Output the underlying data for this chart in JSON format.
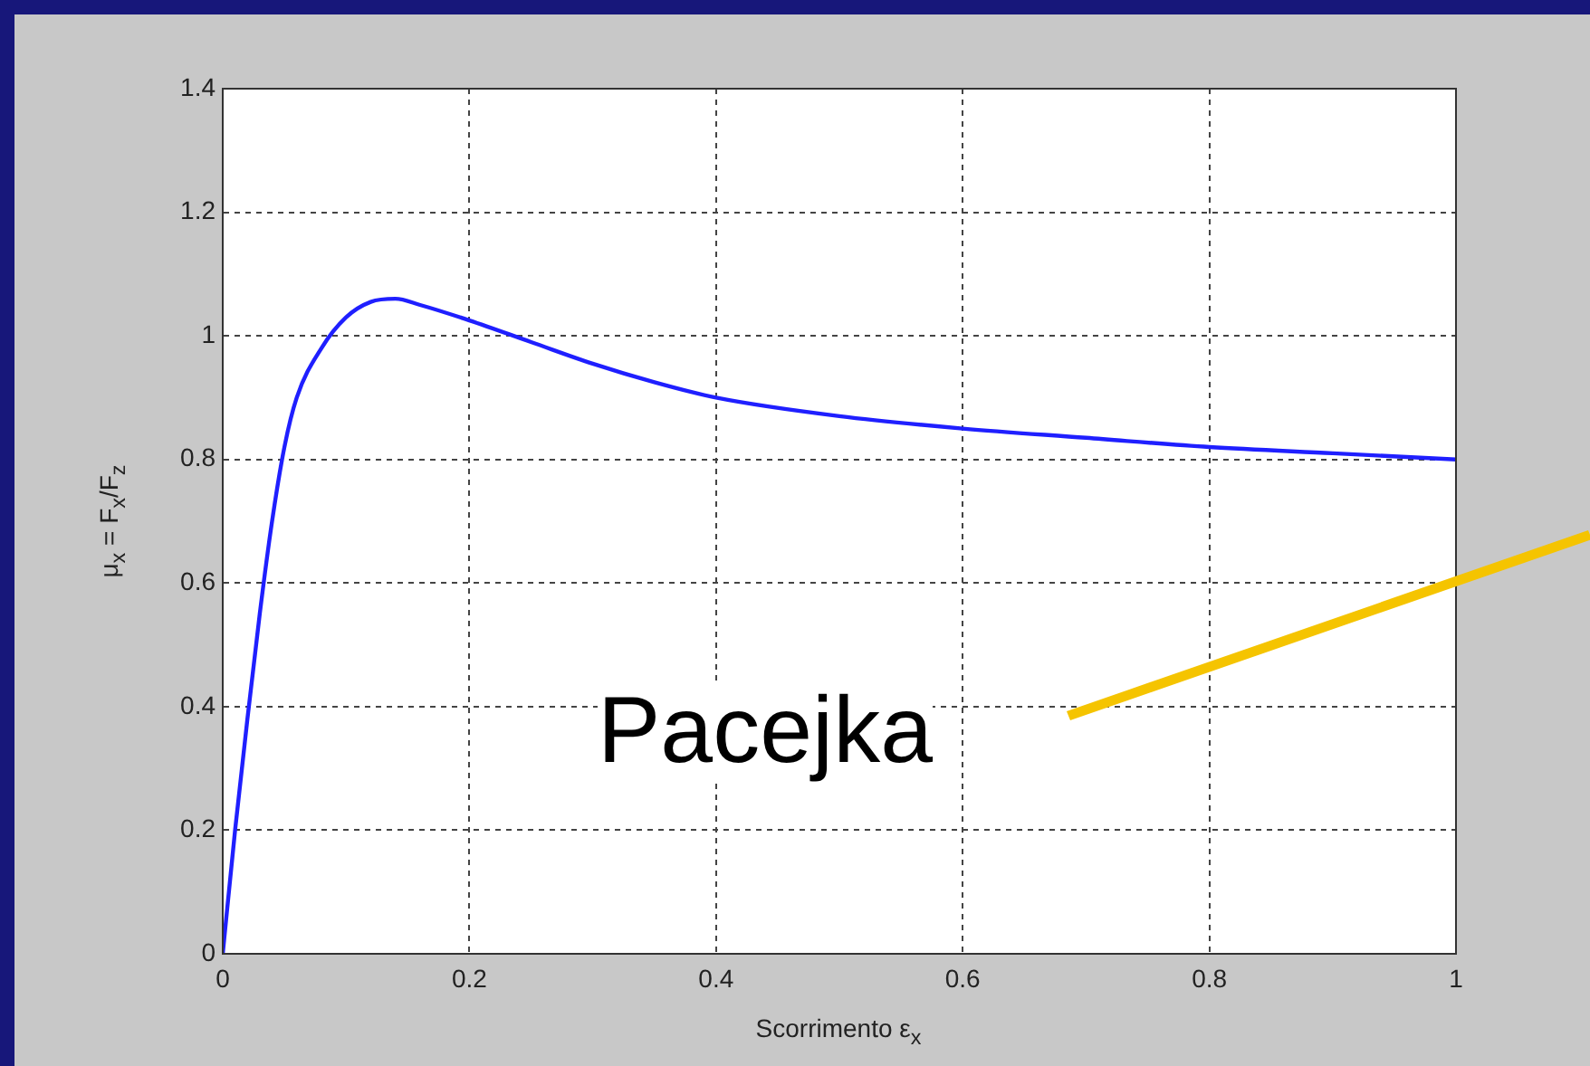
{
  "chart_data": {
    "type": "line",
    "xlabel": "Scorrimento ε$_{x}$",
    "ylabel": "μ$_{x}$ = F$_{x}$/F$_{z}$",
    "x": [
      0,
      0.01,
      0.02,
      0.03,
      0.04,
      0.05,
      0.06,
      0.08,
      0.1,
      0.12,
      0.14,
      0.16,
      0.2,
      0.25,
      0.3,
      0.35,
      0.4,
      0.5,
      0.6,
      0.7,
      0.8,
      0.9,
      1
    ],
    "series": [
      {
        "color": "#1f1fff",
        "values": [
          0,
          0.2,
          0.38,
          0.55,
          0.7,
          0.82,
          0.9,
          0.98,
          1.03,
          1.055,
          1.06,
          1.05,
          1.025,
          0.99,
          0.955,
          0.925,
          0.9,
          0.87,
          0.85,
          0.835,
          0.82,
          0.81,
          0.8
        ]
      }
    ],
    "xlim": [
      0,
      1
    ],
    "ylim": [
      0,
      1.4
    ],
    "xticks": [
      0,
      0.2,
      0.4,
      0.6,
      0.8,
      1
    ],
    "yticks": [
      0,
      0.2,
      0.4,
      0.6,
      0.8,
      1,
      1.2,
      1.4
    ],
    "grid": true,
    "legend": false,
    "marker": "none",
    "line_style": "solid",
    "annotations": [
      "Pacejka"
    ]
  }
}
